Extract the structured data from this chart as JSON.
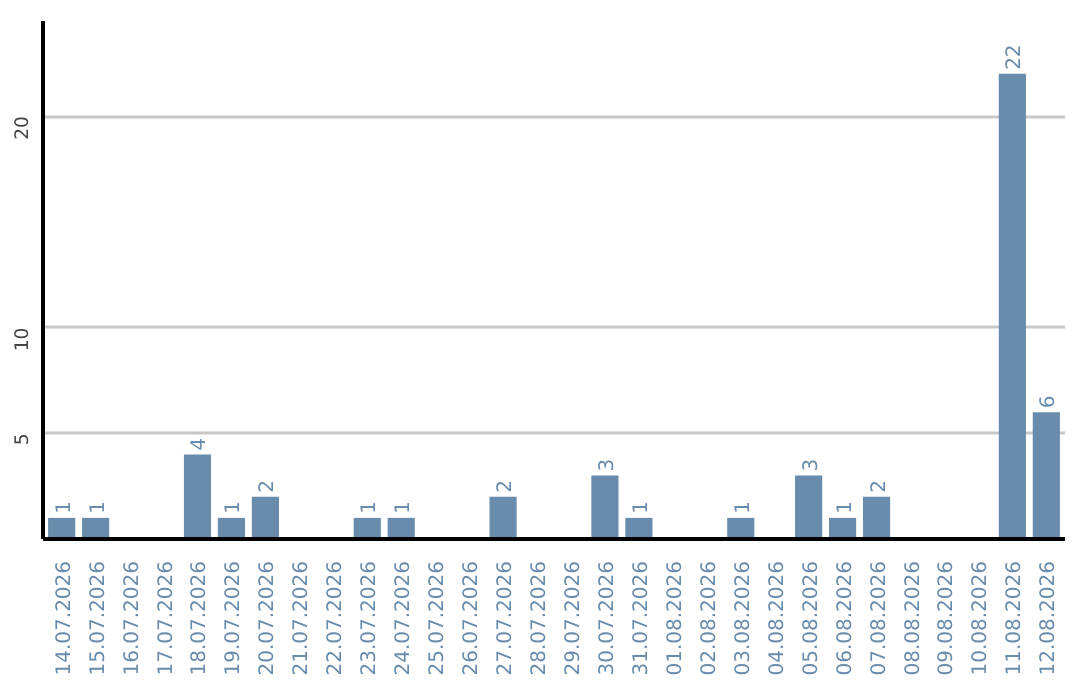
{
  "chart_data": {
    "type": "bar",
    "categories": [
      "14.07.2026",
      "15.07.2026",
      "16.07.2026",
      "17.07.2026",
      "18.07.2026",
      "19.07.2026",
      "20.07.2026",
      "21.07.2026",
      "22.07.2026",
      "23.07.2026",
      "24.07.2026",
      "25.07.2026",
      "26.07.2026",
      "27.07.2026",
      "28.07.2026",
      "29.07.2026",
      "30.07.2026",
      "31.07.2026",
      "01.08.2026",
      "02.08.2026",
      "03.08.2026",
      "04.08.2026",
      "05.08.2026",
      "06.08.2026",
      "07.08.2026",
      "08.08.2026",
      "09.08.2026",
      "10.08.2026",
      "11.08.2026",
      "12.08.2026"
    ],
    "values": [
      1,
      1,
      0,
      0,
      4,
      1,
      2,
      0,
      0,
      1,
      1,
      0,
      0,
      2,
      0,
      0,
      3,
      1,
      0,
      0,
      1,
      0,
      3,
      1,
      2,
      0,
      0,
      0,
      22,
      6
    ],
    "value_labels": [
      "1",
      "1",
      null,
      null,
      "4",
      "1",
      "2",
      null,
      null,
      "1",
      "1",
      null,
      null,
      "2",
      null,
      null,
      "3",
      "1",
      null,
      null,
      "1",
      null,
      "3",
      "1",
      "2",
      null,
      null,
      null,
      "22",
      "6"
    ],
    "color": "#6a8cac",
    "ylim": [
      0,
      24.5
    ],
    "yticks": [
      5,
      10,
      20
    ],
    "grid": "y"
  }
}
